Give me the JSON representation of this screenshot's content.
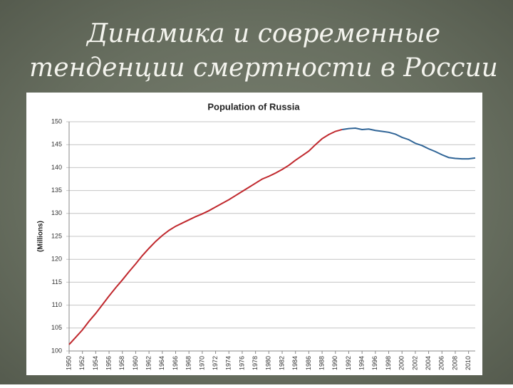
{
  "slide": {
    "title_lines": [
      "Динамика и современные",
      "тенденции смертности в России"
    ]
  },
  "chart_data": {
    "type": "line",
    "title": "Population of Russia",
    "y_label": "(Millions)",
    "x": [
      1950,
      1951,
      1952,
      1953,
      1954,
      1955,
      1956,
      1957,
      1958,
      1959,
      1960,
      1961,
      1962,
      1963,
      1964,
      1965,
      1966,
      1967,
      1968,
      1969,
      1970,
      1971,
      1972,
      1973,
      1974,
      1975,
      1976,
      1977,
      1978,
      1979,
      1980,
      1981,
      1982,
      1983,
      1984,
      1985,
      1986,
      1987,
      1988,
      1989,
      1990,
      1991,
      1992,
      1993,
      1994,
      1995,
      1996,
      1997,
      1998,
      1999,
      2000,
      2001,
      2002,
      2003,
      2004,
      2005,
      2006,
      2007,
      2008,
      2009,
      2010,
      2011
    ],
    "series": [
      {
        "color": "#c0282d",
        "values": [
          101.4,
          103,
          104.6,
          106.5,
          108.2,
          110.1,
          112,
          113.8,
          115.5,
          117.3,
          119,
          120.8,
          122.4,
          123.9,
          125.2,
          126.3,
          127.2,
          127.9,
          128.6,
          129.3,
          129.9,
          130.6,
          131.4,
          132.2,
          133,
          133.9,
          134.8,
          135.7,
          136.6,
          137.5,
          138.1,
          138.8,
          139.6,
          140.5,
          141.6,
          142.6,
          143.6,
          145,
          146.3,
          147.2,
          147.9,
          148.3,
          null,
          null,
          null,
          null,
          null,
          null,
          null,
          null,
          null,
          null,
          null,
          null,
          null,
          null,
          null,
          null,
          null,
          null,
          null,
          null
        ]
      },
      {
        "color": "#2f6496",
        "values": [
          null,
          null,
          null,
          null,
          null,
          null,
          null,
          null,
          null,
          null,
          null,
          null,
          null,
          null,
          null,
          null,
          null,
          null,
          null,
          null,
          null,
          null,
          null,
          null,
          null,
          null,
          null,
          null,
          null,
          null,
          null,
          null,
          null,
          null,
          null,
          null,
          null,
          null,
          null,
          null,
          null,
          148.3,
          148.5,
          148.6,
          148.3,
          148.4,
          148.1,
          147.9,
          147.7,
          147.3,
          146.6,
          146.1,
          145.3,
          144.8,
          144.1,
          143.5,
          142.8,
          142.2,
          142,
          141.9,
          141.9,
          142.1
        ]
      }
    ],
    "xlim": [
      1950,
      2011
    ],
    "xticks": [
      1950,
      1952,
      1954,
      1956,
      1958,
      1960,
      1962,
      1964,
      1966,
      1968,
      1970,
      1972,
      1974,
      1976,
      1978,
      1980,
      1982,
      1984,
      1986,
      1988,
      1990,
      1992,
      1994,
      1996,
      1998,
      2000,
      2002,
      2004,
      2006,
      2008,
      2010
    ],
    "ylim": [
      100,
      150
    ],
    "yticks": [
      100,
      105,
      110,
      115,
      120,
      125,
      130,
      135,
      140,
      145,
      150
    ],
    "grid": true
  }
}
